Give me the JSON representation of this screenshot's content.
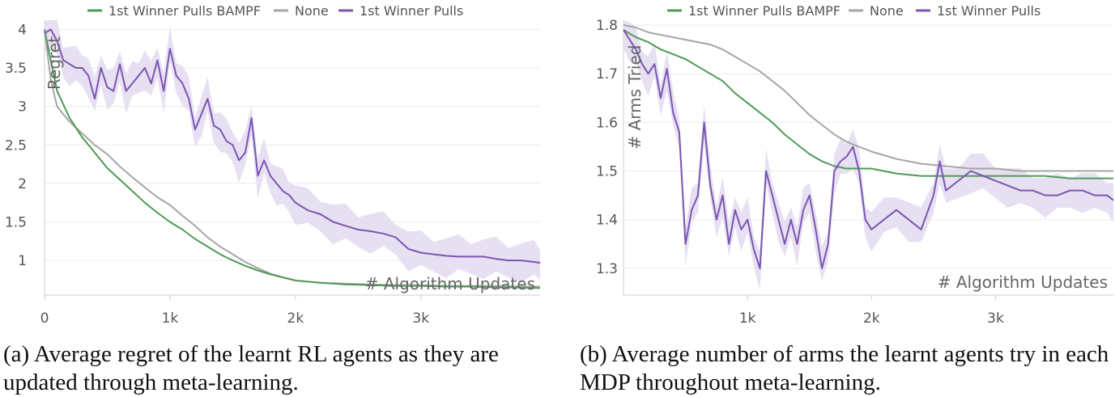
{
  "colors": {
    "bampf": "#4f9a56",
    "none": "#a6a6a6",
    "pulls": "#7b55b0",
    "pulls_band": "#e3ddf1",
    "grid": "#ececec",
    "axis": "#cfcfcf",
    "tick_text": "#555555",
    "label_text": "#666666"
  },
  "chart_data": [
    {
      "type": "line",
      "title": "",
      "xlabel": "# Algorithm Updates",
      "ylabel": "Regret",
      "xlim": [
        0,
        3950
      ],
      "ylim": [
        0.55,
        4.12
      ],
      "xticks": [
        0,
        1000,
        2000,
        3000
      ],
      "xtick_labels": [
        "0",
        "1k",
        "2k",
        "3k"
      ],
      "yticks": [
        1,
        1.5,
        2,
        2.5,
        3,
        3.5,
        4
      ],
      "ytick_labels": [
        "1",
        "1.5",
        "2",
        "2.5",
        "3",
        "3.5",
        "4"
      ],
      "legend": [
        "1st Winner Pulls BAMPF",
        "None",
        "1st Winner Pulls"
      ],
      "legend_position": "top",
      "series": [
        {
          "name": "1st Winner Pulls BAMPF",
          "x": [
            0,
            50,
            100,
            200,
            300,
            400,
            500,
            600,
            700,
            800,
            900,
            1000,
            1100,
            1200,
            1300,
            1400,
            1500,
            1600,
            1700,
            1800,
            1900,
            2000,
            2200,
            2400,
            2600,
            2800,
            3000,
            3200,
            3400,
            3600,
            3800,
            3950
          ],
          "y": [
            4.0,
            3.6,
            3.2,
            2.85,
            2.6,
            2.4,
            2.2,
            2.05,
            1.9,
            1.75,
            1.62,
            1.5,
            1.4,
            1.28,
            1.18,
            1.08,
            1.0,
            0.93,
            0.87,
            0.82,
            0.78,
            0.74,
            0.71,
            0.69,
            0.68,
            0.67,
            0.67,
            0.66,
            0.66,
            0.65,
            0.65,
            0.64
          ]
        },
        {
          "name": "None",
          "x": [
            0,
            50,
            100,
            200,
            300,
            400,
            500,
            600,
            700,
            800,
            900,
            1000,
            1100,
            1200,
            1300,
            1400,
            1500,
            1600,
            1700,
            1800,
            1900,
            2000,
            2200,
            2400,
            2600,
            2800,
            3000,
            3200,
            3400,
            3600,
            3800,
            3950
          ],
          "y": [
            4.0,
            3.35,
            3.0,
            2.8,
            2.65,
            2.5,
            2.38,
            2.22,
            2.08,
            1.95,
            1.82,
            1.72,
            1.58,
            1.45,
            1.3,
            1.18,
            1.08,
            0.98,
            0.9,
            0.83,
            0.78,
            0.74,
            0.71,
            0.7,
            0.69,
            0.68,
            0.68,
            0.67,
            0.67,
            0.67,
            0.66,
            0.66
          ]
        },
        {
          "name": "1st Winner Pulls",
          "x": [
            0,
            50,
            100,
            150,
            200,
            250,
            300,
            350,
            400,
            450,
            500,
            550,
            600,
            650,
            700,
            750,
            800,
            850,
            900,
            950,
            1000,
            1050,
            1100,
            1150,
            1200,
            1250,
            1300,
            1350,
            1400,
            1450,
            1500,
            1550,
            1600,
            1650,
            1700,
            1750,
            1800,
            1850,
            1900,
            1950,
            2000,
            2100,
            2200,
            2300,
            2400,
            2500,
            2600,
            2700,
            2800,
            2900,
            3000,
            3100,
            3200,
            3300,
            3400,
            3500,
            3600,
            3700,
            3800,
            3900,
            3950
          ],
          "y": [
            3.95,
            4.0,
            3.85,
            3.6,
            3.55,
            3.5,
            3.5,
            3.4,
            3.1,
            3.5,
            3.25,
            3.2,
            3.55,
            3.2,
            3.3,
            3.4,
            3.5,
            3.3,
            3.6,
            3.2,
            3.75,
            3.4,
            3.3,
            3.1,
            2.7,
            2.9,
            3.1,
            2.75,
            2.7,
            2.55,
            2.5,
            2.3,
            2.4,
            2.85,
            2.1,
            2.3,
            2.1,
            2.0,
            1.9,
            1.85,
            1.75,
            1.65,
            1.6,
            1.5,
            1.45,
            1.4,
            1.38,
            1.35,
            1.3,
            1.15,
            1.1,
            1.08,
            1.06,
            1.05,
            1.05,
            1.05,
            1.02,
            1.0,
            1.0,
            0.98,
            0.97
          ]
        }
      ]
    },
    {
      "type": "line",
      "title": "",
      "xlabel": "# Algorithm Updates",
      "ylabel": "# Arms Tried",
      "xlim": [
        0,
        3950
      ],
      "ylim": [
        1.245,
        1.81
      ],
      "xticks": [
        1000,
        2000,
        3000
      ],
      "xtick_labels": [
        "1k",
        "2k",
        "3k"
      ],
      "yticks": [
        1.3,
        1.4,
        1.5,
        1.6,
        1.7,
        1.8
      ],
      "ytick_labels": [
        "1.3",
        "1.4",
        "1.5",
        "1.6",
        "1.7",
        "1.8"
      ],
      "legend": [
        "1st Winner Pulls BAMPF",
        "None",
        "1st Winner Pulls"
      ],
      "legend_position": "top",
      "series": [
        {
          "name": "1st Winner Pulls BAMPF",
          "x": [
            0,
            100,
            200,
            300,
            400,
            500,
            600,
            700,
            800,
            900,
            1000,
            1100,
            1200,
            1300,
            1400,
            1500,
            1600,
            1700,
            1800,
            1900,
            2000,
            2200,
            2400,
            2600,
            2800,
            3000,
            3200,
            3400,
            3600,
            3800,
            3950
          ],
          "y": [
            1.79,
            1.775,
            1.765,
            1.75,
            1.74,
            1.73,
            1.715,
            1.7,
            1.685,
            1.66,
            1.64,
            1.62,
            1.6,
            1.575,
            1.555,
            1.535,
            1.52,
            1.51,
            1.505,
            1.505,
            1.505,
            1.495,
            1.49,
            1.49,
            1.49,
            1.49,
            1.49,
            1.49,
            1.485,
            1.485,
            1.485
          ]
        },
        {
          "name": "None",
          "x": [
            0,
            100,
            200,
            300,
            400,
            500,
            600,
            700,
            800,
            900,
            1000,
            1100,
            1200,
            1300,
            1400,
            1500,
            1600,
            1700,
            1800,
            1900,
            2000,
            2200,
            2400,
            2600,
            2800,
            3000,
            3200,
            3400,
            3600,
            3800,
            3950
          ],
          "y": [
            1.8,
            1.795,
            1.785,
            1.78,
            1.775,
            1.77,
            1.765,
            1.76,
            1.75,
            1.735,
            1.72,
            1.705,
            1.685,
            1.665,
            1.64,
            1.615,
            1.595,
            1.575,
            1.56,
            1.55,
            1.54,
            1.525,
            1.515,
            1.51,
            1.505,
            1.505,
            1.5,
            1.5,
            1.5,
            1.5,
            1.5
          ]
        },
        {
          "name": "1st Winner Pulls",
          "x": [
            0,
            50,
            100,
            150,
            200,
            250,
            300,
            350,
            400,
            450,
            500,
            550,
            600,
            650,
            700,
            750,
            800,
            850,
            900,
            950,
            1000,
            1050,
            1100,
            1150,
            1200,
            1250,
            1300,
            1350,
            1400,
            1450,
            1500,
            1550,
            1600,
            1650,
            1700,
            1750,
            1800,
            1850,
            1900,
            1950,
            2000,
            2100,
            2200,
            2300,
            2400,
            2500,
            2550,
            2600,
            2700,
            2800,
            2900,
            3000,
            3100,
            3200,
            3300,
            3400,
            3500,
            3600,
            3700,
            3800,
            3900,
            3950
          ],
          "y": [
            1.79,
            1.77,
            1.75,
            1.72,
            1.7,
            1.72,
            1.65,
            1.71,
            1.62,
            1.58,
            1.35,
            1.42,
            1.45,
            1.6,
            1.47,
            1.4,
            1.45,
            1.35,
            1.42,
            1.38,
            1.4,
            1.34,
            1.3,
            1.5,
            1.45,
            1.4,
            1.35,
            1.4,
            1.35,
            1.42,
            1.45,
            1.38,
            1.3,
            1.35,
            1.5,
            1.52,
            1.53,
            1.55,
            1.5,
            1.4,
            1.38,
            1.4,
            1.42,
            1.4,
            1.38,
            1.45,
            1.52,
            1.46,
            1.48,
            1.5,
            1.49,
            1.48,
            1.47,
            1.46,
            1.46,
            1.45,
            1.45,
            1.46,
            1.46,
            1.45,
            1.45,
            1.44
          ]
        }
      ]
    }
  ],
  "captions": {
    "a": "(a) Average regret of the learnt RL agents as they are updated through meta-learning.",
    "b": "(b) Average number of arms the learnt agents try in each MDP throughout meta-learning."
  }
}
